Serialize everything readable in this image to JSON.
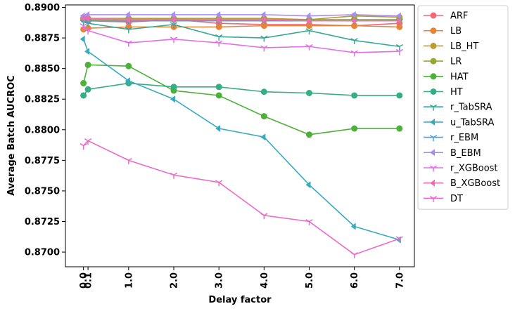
{
  "chart_data": {
    "type": "line",
    "xlabel": "Delay factor",
    "ylabel": "Average Batch AUCROC",
    "x": [
      0.0,
      0.1,
      1.0,
      2.0,
      3.0,
      4.0,
      5.0,
      6.0,
      7.0
    ],
    "x_tick_labels": [
      "0.0",
      "0.1",
      "1.0",
      "2.0",
      "3.0",
      "4.0",
      "5.0",
      "6.0",
      "7.0"
    ],
    "x_ticks": [
      0.0,
      0.1,
      1.0,
      2.0,
      3.0,
      4.0,
      5.0,
      6.0,
      7.0
    ],
    "xlim": [
      -0.4,
      7.33
    ],
    "ylim": [
      0.8688,
      0.8902
    ],
    "y_ticks": [
      0.87,
      0.8725,
      0.875,
      0.8775,
      0.88,
      0.8825,
      0.885,
      0.8875,
      0.89
    ],
    "y_tick_labels": [
      "0.8700",
      "0.8725",
      "0.8750",
      "0.8775",
      "0.8800",
      "0.8825",
      "0.8850",
      "0.8875",
      "0.8900"
    ],
    "grid": false,
    "legend_position": "outside-right",
    "series": [
      {
        "name": "ARF",
        "color": "#f0697a",
        "marker": "circle",
        "values": [
          0.889,
          0.8889,
          0.8888,
          0.889,
          0.8887,
          0.8886,
          0.8886,
          0.8885,
          0.8887
        ]
      },
      {
        "name": "LB",
        "color": "#e8843a",
        "marker": "circle",
        "values": [
          0.8882,
          0.8883,
          0.8884,
          0.8884,
          0.8884,
          0.8885,
          0.8885,
          0.8885,
          0.8884
        ]
      },
      {
        "name": "LB_HT",
        "color": "#bb9a30",
        "marker": "circle",
        "values": [
          0.8891,
          0.8891,
          0.8891,
          0.8891,
          0.8891,
          0.8891,
          0.889,
          0.8893,
          0.8892
        ]
      },
      {
        "name": "LR",
        "color": "#92a833",
        "marker": "circle",
        "values": [
          0.889,
          0.889,
          0.889,
          0.889,
          0.889,
          0.889,
          0.889,
          0.889,
          0.889
        ]
      },
      {
        "name": "HAT",
        "color": "#4eb03a",
        "marker": "circle",
        "values": [
          0.8838,
          0.8853,
          0.8852,
          0.8832,
          0.8828,
          0.8811,
          0.8796,
          0.8801,
          0.8801
        ]
      },
      {
        "name": "HT",
        "color": "#36ad82",
        "marker": "circle",
        "values": [
          0.8828,
          0.8833,
          0.8838,
          0.8835,
          0.8835,
          0.8831,
          0.883,
          0.8828,
          0.8828
        ]
      },
      {
        "name": "r_TabSRA",
        "color": "#37a896",
        "marker": "tri_down",
        "values": [
          0.8888,
          0.8887,
          0.8882,
          0.8886,
          0.8876,
          0.8875,
          0.8881,
          0.8873,
          0.8868
        ]
      },
      {
        "name": "u_TabSRA",
        "color": "#39a9be",
        "marker": "caret_left",
        "values": [
          0.8874,
          0.8864,
          0.884,
          0.8825,
          0.8801,
          0.8794,
          0.8755,
          0.8721,
          0.871
        ]
      },
      {
        "name": "r_EBM",
        "color": "#45a3e0",
        "marker": "tri_down",
        "values": [
          0.889,
          0.8889,
          0.8889,
          0.8889,
          0.8889,
          0.8889,
          0.8889,
          0.8889,
          0.8889
        ]
      },
      {
        "name": "B_EBM",
        "color": "#a98ef2",
        "marker": "caret_left",
        "values": [
          0.8893,
          0.8894,
          0.8894,
          0.8894,
          0.8894,
          0.8894,
          0.8893,
          0.8894,
          0.8893
        ]
      },
      {
        "name": "r_XGBoost",
        "color": "#e36ee6",
        "marker": "tri_down",
        "values": [
          0.8885,
          0.8881,
          0.8871,
          0.8874,
          0.8871,
          0.8867,
          0.8868,
          0.8863,
          0.8864
        ]
      },
      {
        "name": "B_XGBoost",
        "color": "#f16db0",
        "marker": "caret_left",
        "values": [
          0.8891,
          0.8891,
          0.889,
          0.889,
          0.889,
          0.889,
          0.8889,
          0.8889,
          0.8889
        ]
      },
      {
        "name": "DT",
        "color": "#ee6ac6",
        "marker": "tri_down",
        "values": [
          0.8787,
          0.8791,
          0.8775,
          0.8763,
          0.8757,
          0.873,
          0.8725,
          0.8698,
          0.8711
        ]
      }
    ]
  }
}
